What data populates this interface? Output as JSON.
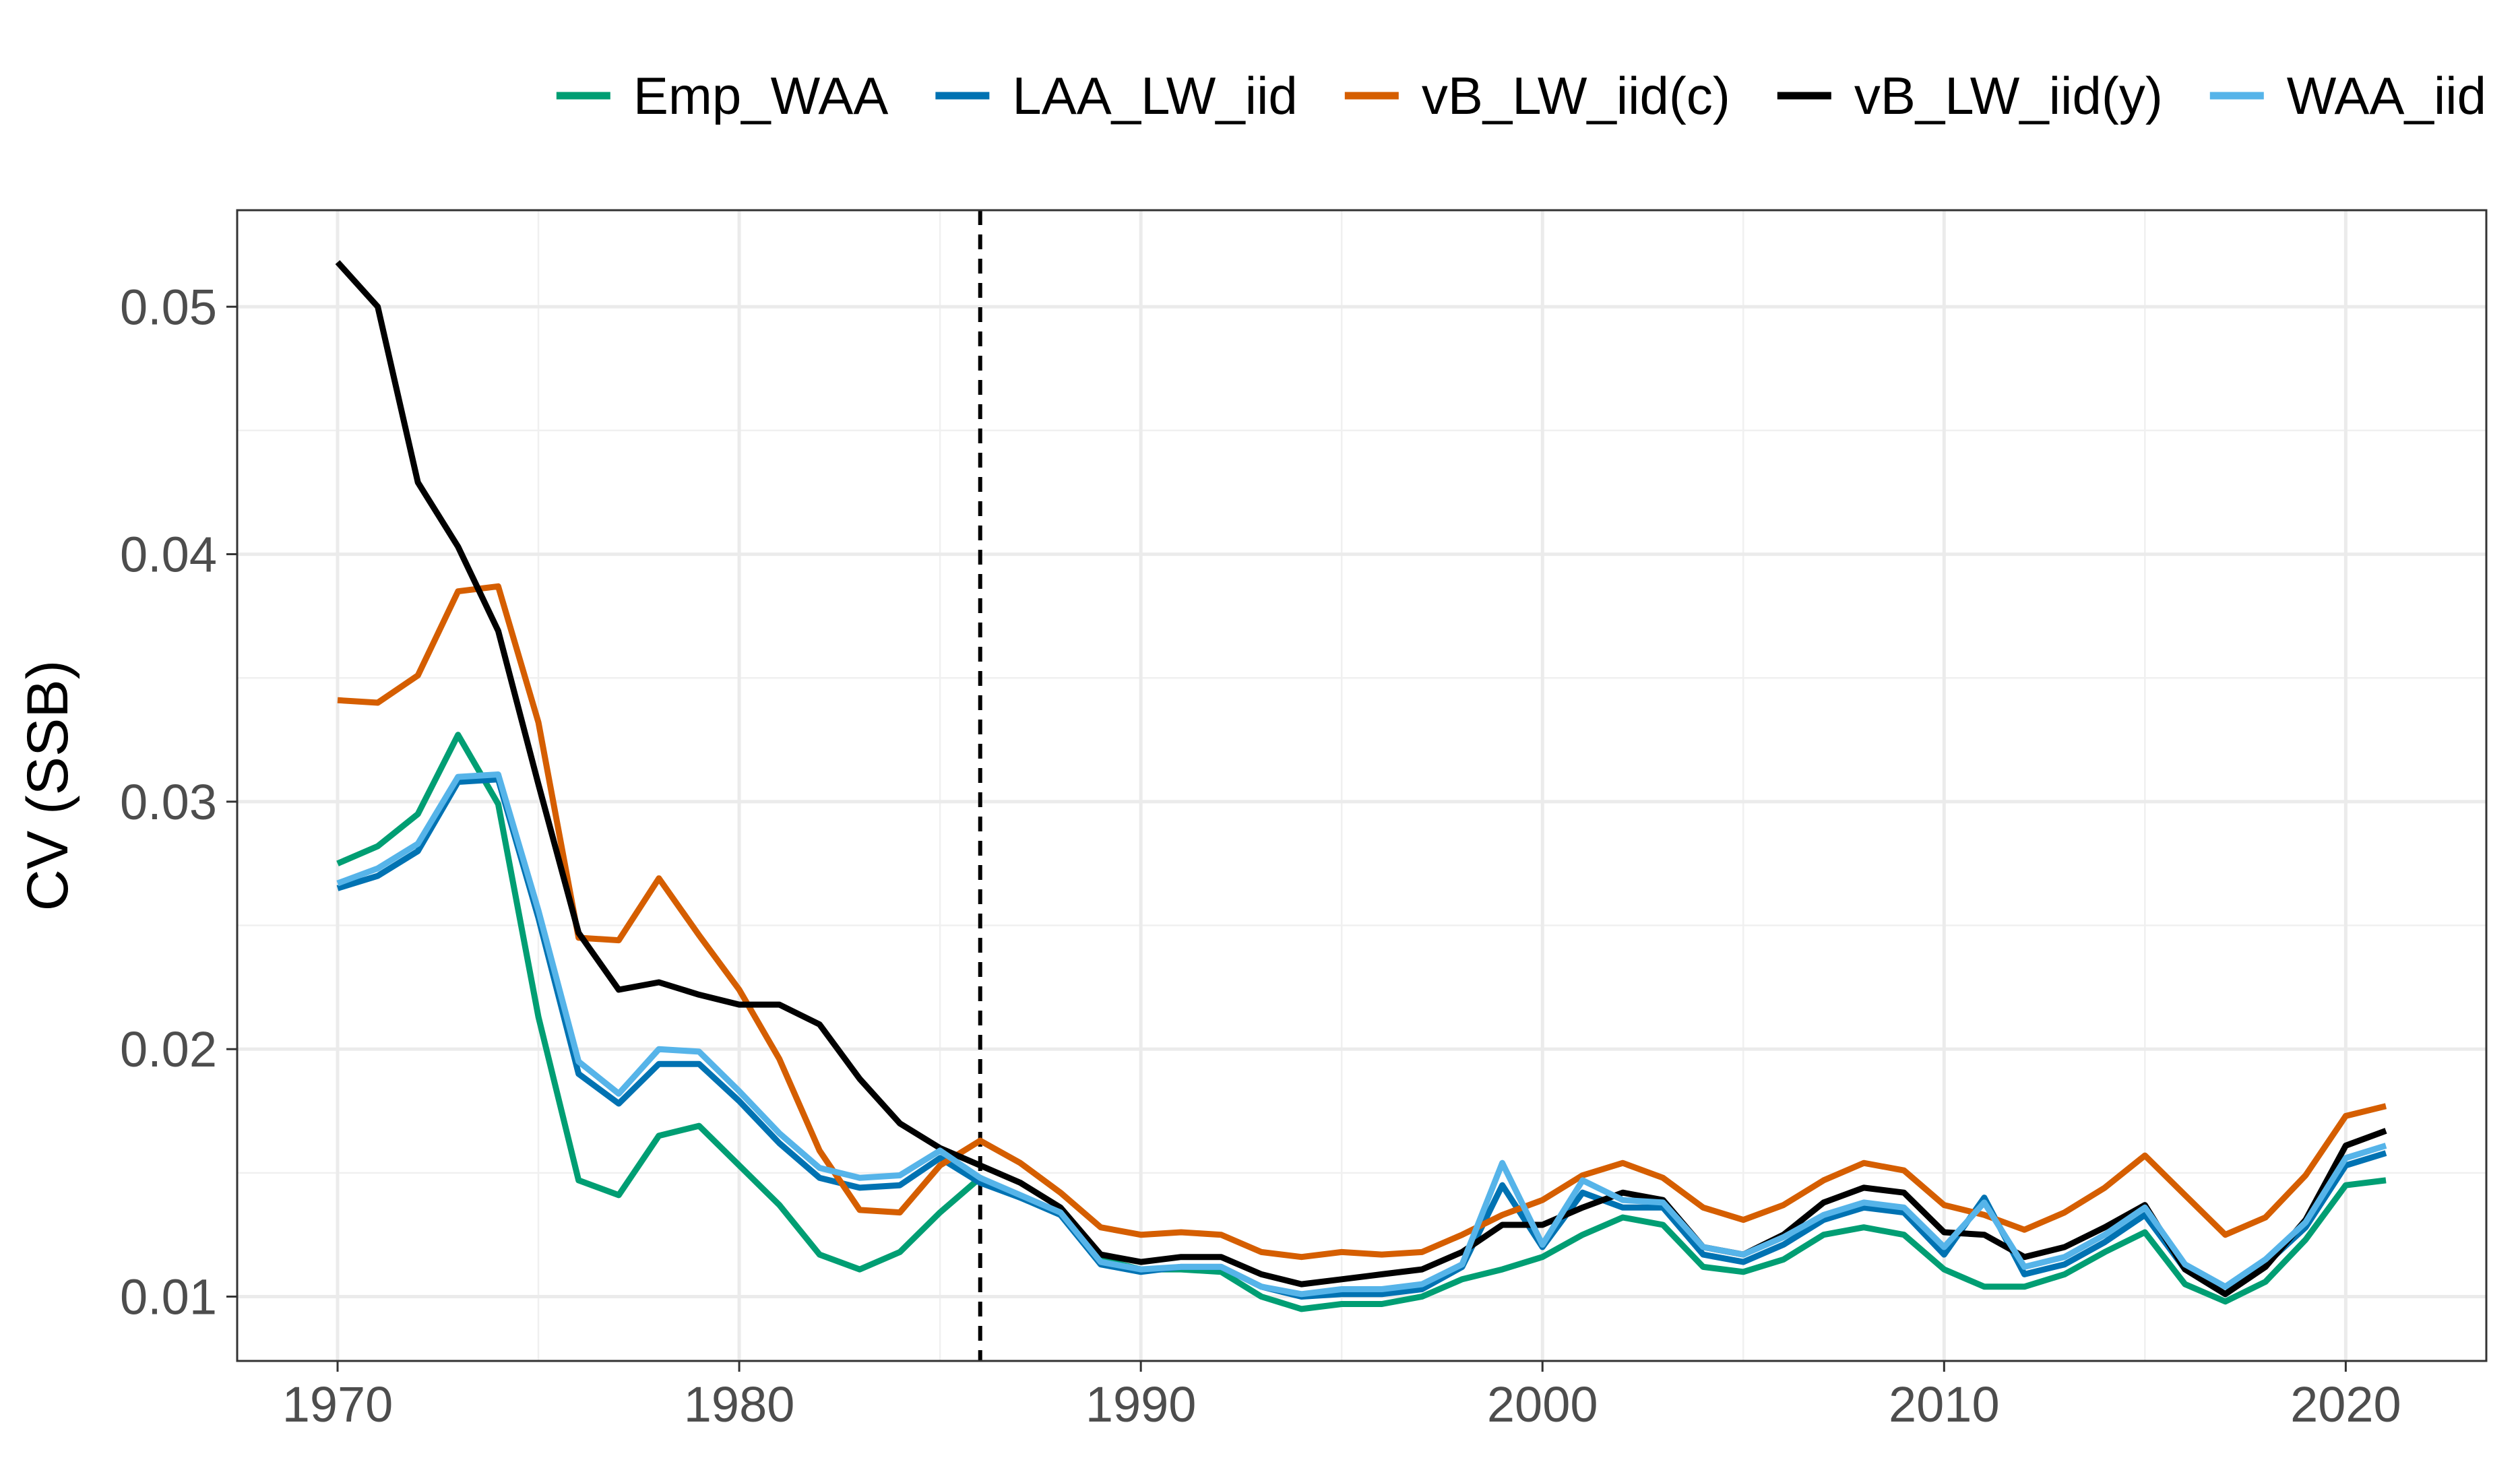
{
  "chart_data": {
    "type": "line",
    "title": "",
    "xlabel": "",
    "ylabel": "CV (SSB)",
    "xlim": [
      1967.5,
      2023.5
    ],
    "ylim": [
      0.0074,
      0.0539
    ],
    "xticks": [
      1970,
      1980,
      1990,
      2000,
      2010,
      2020
    ],
    "yticks": [
      0.01,
      0.02,
      0.03,
      0.04,
      0.05
    ],
    "ytick_labels": [
      "0.01",
      "0.02",
      "0.03",
      "0.04",
      "0.05"
    ],
    "grid": true,
    "legend_position": "top",
    "reference_line": {
      "x": 1986,
      "style": "dashed",
      "color": "#000000"
    },
    "x": [
      1970,
      1971,
      1972,
      1973,
      1974,
      1975,
      1976,
      1977,
      1978,
      1979,
      1980,
      1981,
      1982,
      1983,
      1984,
      1985,
      1986,
      1987,
      1988,
      1989,
      1990,
      1991,
      1992,
      1993,
      1994,
      1995,
      1996,
      1997,
      1998,
      1999,
      2000,
      2001,
      2002,
      2003,
      2004,
      2005,
      2006,
      2007,
      2008,
      2009,
      2010,
      2011,
      2012,
      2013,
      2014,
      2015,
      2016,
      2017,
      2018,
      2019,
      2020,
      2021
    ],
    "series": [
      {
        "name": "Emp_WAA",
        "color": "#009E73",
        "values": [
          0.0275,
          0.0282,
          0.0295,
          0.0327,
          0.0299,
          0.0213,
          0.0147,
          0.0141,
          0.0165,
          0.0169,
          0.0153,
          0.0137,
          0.0117,
          0.0111,
          0.0118,
          0.0134,
          0.0148,
          0.014,
          0.0134,
          0.0115,
          0.0111,
          0.0111,
          0.011,
          0.01,
          0.0095,
          0.0097,
          0.0097,
          0.01,
          0.0107,
          0.0111,
          0.0116,
          0.0125,
          0.0132,
          0.0129,
          0.0112,
          0.011,
          0.0115,
          0.0125,
          0.0128,
          0.0125,
          0.0111,
          0.0104,
          0.0104,
          0.0109,
          0.0118,
          0.0126,
          0.0105,
          0.0098,
          0.0106,
          0.0123,
          0.0145,
          0.0147
        ]
      },
      {
        "name": "LAA_LW_iid",
        "color": "#0072B2",
        "values": [
          0.0265,
          0.027,
          0.028,
          0.0308,
          0.0309,
          0.0253,
          0.019,
          0.0178,
          0.0194,
          0.0194,
          0.0179,
          0.0162,
          0.0148,
          0.0144,
          0.0145,
          0.0156,
          0.0146,
          0.014,
          0.0133,
          0.0113,
          0.011,
          0.0112,
          0.0112,
          0.0104,
          0.01,
          0.0101,
          0.0101,
          0.0103,
          0.0112,
          0.0145,
          0.012,
          0.0142,
          0.0136,
          0.0136,
          0.0117,
          0.0114,
          0.0121,
          0.0131,
          0.0136,
          0.0134,
          0.0117,
          0.014,
          0.0109,
          0.0113,
          0.0122,
          0.0133,
          0.0111,
          0.0101,
          0.0113,
          0.0128,
          0.0153,
          0.0158
        ]
      },
      {
        "name": "vB_LW_iid(c)",
        "color": "#D55E00",
        "values": [
          0.0341,
          0.034,
          0.0351,
          0.0385,
          0.0387,
          0.0332,
          0.0245,
          0.0244,
          0.0269,
          0.0246,
          0.0224,
          0.0196,
          0.0159,
          0.0135,
          0.0134,
          0.0153,
          0.0163,
          0.0154,
          0.0142,
          0.0128,
          0.0125,
          0.0126,
          0.0125,
          0.0118,
          0.0116,
          0.0118,
          0.0117,
          0.0118,
          0.0125,
          0.0133,
          0.0139,
          0.0149,
          0.0154,
          0.0148,
          0.0136,
          0.0131,
          0.0137,
          0.0147,
          0.0154,
          0.0151,
          0.0137,
          0.0133,
          0.0127,
          0.0134,
          0.0144,
          0.0157,
          0.0141,
          0.0125,
          0.0132,
          0.0149,
          0.0173,
          0.0177
        ]
      },
      {
        "name": "vB_LW_iid(y)",
        "color": "#000000",
        "values": [
          0.0518,
          0.05,
          0.0429,
          0.0403,
          0.0369,
          0.0307,
          0.0247,
          0.0224,
          0.0227,
          0.0222,
          0.0218,
          0.0218,
          0.021,
          0.0188,
          0.017,
          0.016,
          0.0153,
          0.0146,
          0.0136,
          0.0117,
          0.0114,
          0.0116,
          0.0116,
          0.0109,
          0.0105,
          0.0107,
          0.0109,
          0.0111,
          0.0118,
          0.0129,
          0.0129,
          0.0136,
          0.0142,
          0.0139,
          0.012,
          0.0117,
          0.0125,
          0.0138,
          0.0144,
          0.0142,
          0.0126,
          0.0125,
          0.0116,
          0.012,
          0.0128,
          0.0137,
          0.0111,
          0.0101,
          0.0112,
          0.0131,
          0.0161,
          0.0167
        ]
      },
      {
        "name": "WAA_iid",
        "color": "#56B4E9",
        "values": [
          0.0267,
          0.0273,
          0.0283,
          0.031,
          0.0311,
          0.0256,
          0.0195,
          0.0182,
          0.02,
          0.0199,
          0.0183,
          0.0166,
          0.0152,
          0.0148,
          0.0149,
          0.0159,
          0.0148,
          0.0141,
          0.0134,
          0.0114,
          0.0111,
          0.0112,
          0.0112,
          0.0104,
          0.0101,
          0.0103,
          0.0103,
          0.0105,
          0.0113,
          0.0154,
          0.0121,
          0.0147,
          0.0139,
          0.0138,
          0.012,
          0.0117,
          0.0124,
          0.0133,
          0.0138,
          0.0136,
          0.012,
          0.0138,
          0.0112,
          0.0116,
          0.0125,
          0.0136,
          0.0113,
          0.0104,
          0.0115,
          0.013,
          0.0156,
          0.0161
        ]
      }
    ]
  }
}
